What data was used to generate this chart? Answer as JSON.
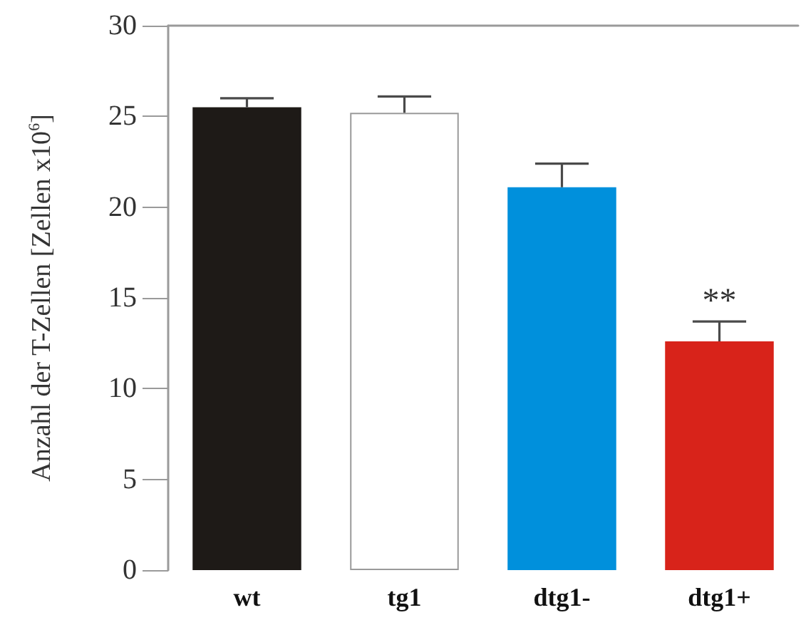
{
  "chart_data": {
    "type": "bar",
    "ylabel": "Anzahl der T-Zellen [Zellen x10$^{6}$]",
    "categories": [
      "wt",
      "tg1",
      "dtg1-",
      "dtg1+"
    ],
    "values": [
      25.5,
      25.2,
      21.1,
      12.6
    ],
    "colors": [
      "#1e1a17",
      "#ffffff",
      "#0090dc",
      "#d8231a"
    ],
    "errors": [
      [
        25.5,
        26.0
      ],
      [
        25.2,
        26.1
      ],
      [
        21.1,
        22.4
      ],
      [
        12.6,
        13.7
      ]
    ],
    "ylim": [
      0,
      30
    ],
    "yticks": [
      0,
      5,
      10,
      15,
      20,
      25,
      30
    ],
    "grid": false,
    "annotations": [
      "**"
    ]
  }
}
